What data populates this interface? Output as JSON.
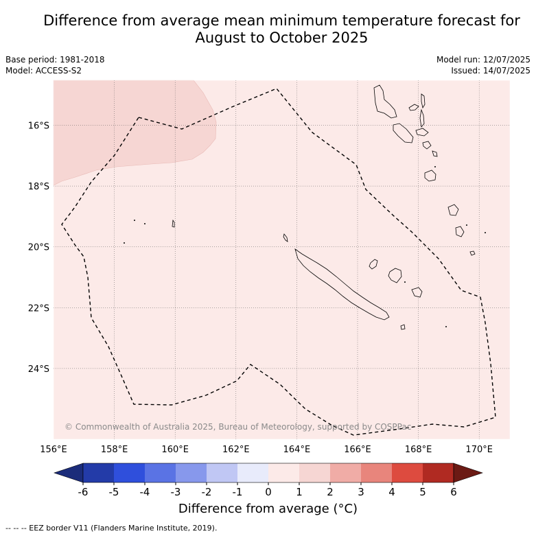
{
  "title_line1": "Difference from average mean minimum temperature forecast for",
  "title_line2": "August to October 2025",
  "base_period": "Base period: 1981-2018",
  "model": "Model: ACCESS-S2",
  "model_run": "Model run: 12/07/2025",
  "issued": "Issued: 14/07/2025",
  "copyright": "© Commonwealth of Australia 2025, Bureau of Meteorology, supported by COSPPac",
  "colorbar_label": "Difference from average (°C)",
  "footnote": "--  --  -- EEZ border V11 (Flanders Marine Institute, 2019).",
  "lat_ticks": [
    {
      "value": -16,
      "label": "16°S"
    },
    {
      "value": -18,
      "label": "18°S"
    },
    {
      "value": -20,
      "label": "20°S"
    },
    {
      "value": -22,
      "label": "22°S"
    },
    {
      "value": -24,
      "label": "24°S"
    }
  ],
  "lon_ticks": [
    {
      "value": 156,
      "label": "156°E"
    },
    {
      "value": 158,
      "label": "158°E"
    },
    {
      "value": 160,
      "label": "160°E"
    },
    {
      "value": 162,
      "label": "162°E"
    },
    {
      "value": 164,
      "label": "164°E"
    },
    {
      "value": 166,
      "label": "166°E"
    },
    {
      "value": 168,
      "label": "168°E"
    },
    {
      "value": 170,
      "label": "170°E"
    }
  ],
  "colorbar": {
    "ticks": [
      "-6",
      "-5",
      "-4",
      "-3",
      "-2",
      "-1",
      "0",
      "1",
      "2",
      "3",
      "4",
      "5",
      "6"
    ],
    "under_color": "#1b2c7a",
    "over_color": "#6b1a14",
    "colors": [
      "#233ba8",
      "#2f4fdc",
      "#5a73e4",
      "#8798ec",
      "#c0c7f4",
      "#e8ebfb",
      "#fceae8",
      "#f6d6d3",
      "#f0aca6",
      "#e8857c",
      "#dd4b3f",
      "#b02a22"
    ]
  },
  "colors": {
    "background_field": "#fceae8",
    "warm_patch": "#f6d6d3"
  }
}
